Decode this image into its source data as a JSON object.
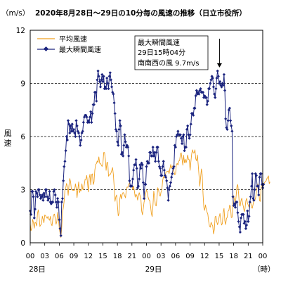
{
  "chart_data": {
    "type": "line",
    "title": "2020年8月28日～29日の10分毎の風速の推移（日立市役所）",
    "unit_label": "（m/s）",
    "ylabel": "風速",
    "x_unit": "（時）",
    "ylim": [
      0,
      12
    ],
    "y_ticks": [
      "0",
      "3",
      "6",
      "9",
      "12"
    ],
    "x_tick_labels": [
      "00",
      "03",
      "06",
      "09",
      "12",
      "15",
      "18",
      "21",
      "00",
      "03",
      "06",
      "09",
      "12",
      "15",
      "18",
      "21",
      "00"
    ],
    "day_labels": [
      {
        "label": "28日",
        "at_hour": 0
      },
      {
        "label": "29日",
        "at_hour": 24
      }
    ],
    "x_range_hours": [
      0,
      48
    ],
    "grid": "dashed horizontal at 3, 6, 9",
    "legend_placement": "top-left",
    "colors": {
      "average": "#f0a020",
      "max": "#1a237e"
    },
    "annotation": {
      "lines": [
        "最大瞬間風速",
        "29日15時04分",
        "南南西の風 9.7m/s"
      ],
      "arrow_at_hour": 39.07,
      "arrow_value": 9.7
    },
    "series": [
      {
        "name": "平均風速",
        "sample_interval_hours": 0.1667,
        "values": [
          1.07,
          0.68,
          0.82,
          1.32,
          1.15,
          0.82,
          1.16,
          1.11,
          0.95,
          1.66,
          1.86,
          1.49,
          0.92,
          1.01,
          1.06,
          1.5,
          1.33,
          1.13,
          1.57,
          1.53,
          1.45,
          1.38,
          1.49,
          1.34,
          1.27,
          1.49,
          1.07,
          0.96,
          1.35,
          1.57,
          1.62,
          1.38,
          1.05,
          1.21,
          1.72,
          1.33,
          0.81,
          0.55,
          0.3,
          0.84,
          1.69,
          1.97,
          2.34,
          2.98,
          3.1,
          3.35,
          3.18,
          2.68,
          3.24,
          3.63,
          3.44,
          3.0,
          2.98,
          2.96,
          2.97,
          2.97,
          3.33,
          3.07,
          2.55,
          3.0,
          3.44,
          2.83,
          2.97,
          2.93,
          3.33,
          3.03,
          2.99,
          3.29,
          3.59,
          3.58,
          3.8,
          3.37,
          2.87,
          3.64,
          3.87,
          3.27,
          3.84,
          3.89,
          3.29,
          3.43,
          4.09,
          4.42,
          4.47,
          4.62,
          4.53,
          4.85,
          4.49,
          4.48,
          4.39,
          4.31,
          4.45,
          5.1,
          5.1,
          4.75,
          4.09,
          4.53,
          4.54,
          3.76,
          3.84,
          3.84,
          3.94,
          4.09,
          4.25,
          3.84,
          3.14,
          2.34,
          2.59,
          2.7,
          2.12,
          1.52,
          1.66,
          2.49,
          2.73,
          2.47,
          2.75,
          2.84,
          2.78,
          2.65,
          2.54,
          2.98,
          3.15,
          3.13,
          3.3,
          3.38,
          3.14,
          3.21,
          3.23,
          3.0,
          3.2,
          2.92,
          2.58,
          2.73,
          2.68,
          2.41,
          2.65,
          2.83,
          2.66,
          2.51,
          1.8,
          1.58,
          1.92,
          2.3,
          2.48,
          2.77,
          2.99,
          2.85,
          2.57,
          2.43,
          2.38,
          2.08,
          1.66,
          1.48,
          2.1,
          2.92,
          2.58,
          2.14,
          2.08,
          2.55,
          3.11,
          2.97,
          2.7,
          2.63,
          2.86,
          2.98,
          3.51,
          3.74,
          3.66,
          3.72,
          3.99,
          4.02,
          4.02,
          4.06,
          3.91,
          4.18,
          4.42,
          4.22,
          4.33,
          4.34,
          4.04,
          3.84,
          3.9,
          4.42,
          4.48,
          4.39,
          4.62,
          4.63,
          5.0,
          5.08,
          4.73,
          4.38,
          4.94,
          4.52,
          4.72,
          4.51,
          4.68,
          4.96,
          4.71,
          4.69,
          4.09,
          4.59,
          5.04,
          5.25,
          5.07,
          5.08,
          5.25,
          4.74,
          4.63,
          4.96,
          4.44,
          3.83,
          3.19,
          3.68,
          4.17,
          3.84,
          2.77,
          2.0,
          1.83,
          2.14,
          1.9,
          1.73,
          1.6,
          1.19,
          0.95,
          0.88,
          1.16,
          1.04,
          0.94,
          0.5,
          0.74,
          1.47,
          1.5,
          1.19,
          1.02,
          1.18,
          1.48,
          1.65,
          1.26,
          1.0,
          1.09,
          1.71,
          1.94,
          1.24,
          1.03,
          1.37,
          1.44,
          1.78,
          1.83,
          2.13,
          2.05,
          1.42,
          1.44,
          2.3,
          2.67,
          2.37,
          2.19,
          2.64,
          3.17,
          3.29,
          2.81,
          2.16,
          2.07,
          2.37,
          2.52,
          2.22,
          2.04,
          1.76,
          1.92,
          2.37,
          2.51,
          2.24,
          2.13,
          2.01,
          2.24,
          2.28,
          2.0,
          1.95,
          2.17,
          2.42,
          2.39,
          2.5,
          2.84,
          3.21,
          3.32,
          3.0,
          2.37,
          2.34,
          3.1,
          3.36,
          3.28,
          3.22,
          3.38,
          3.46,
          3.48,
          3.62,
          3.68,
          3.78,
          3.34,
          3.44
        ]
      },
      {
        "name": "最大瞬間風速",
        "sample_interval_hours": 0.1667,
        "values": [
          1.8,
          1.6,
          2.9,
          2.9,
          2.6,
          1.4,
          1.9,
          2.9,
          2.8,
          2.6,
          3.0,
          3.0,
          2.7,
          2.5,
          2.6,
          2.7,
          2.4,
          2.8,
          2.6,
          3.0,
          3.0,
          2.6,
          2.4,
          2.5,
          2.9,
          2.3,
          2.2,
          2.3,
          2.3,
          2.9,
          3.0,
          2.7,
          2.3,
          2.0,
          2.5,
          2.3,
          1.3,
          0.8,
          0.4,
          2.3,
          2.5,
          3.5,
          4.3,
          4.6,
          5.2,
          6.0,
          5.8,
          6.9,
          6.7,
          6.2,
          6.6,
          6.3,
          6.7,
          6.3,
          6.4,
          6.2,
          6.0,
          6.9,
          6.6,
          6.3,
          6.2,
          6.0,
          5.5,
          5.8,
          6.2,
          6.3,
          6.8,
          7.1,
          7.2,
          7.2,
          7.1,
          6.8,
          6.9,
          6.8,
          7.1,
          7.4,
          6.8,
          7.3,
          7.8,
          7.8,
          8.5,
          8.5,
          8.0,
          9.2,
          9.7,
          9.4,
          9.1,
          8.8,
          9.2,
          9.5,
          9.1,
          9.4,
          8.7,
          8.8,
          8.7,
          9.3,
          9.0,
          8.7,
          9.4,
          9.6,
          9.2,
          8.8,
          8.5,
          8.4,
          7.9,
          7.3,
          6.4,
          6.3,
          5.7,
          5.5,
          6.4,
          6.9,
          6.6,
          5.0,
          5.1,
          4.9,
          5.5,
          6.1,
          5.7,
          5.4,
          5.5,
          5.4,
          4.9,
          3.5,
          3.2,
          3.2,
          3.2,
          3.6,
          4.1,
          4.4,
          4.4,
          4.7,
          4.2,
          3.1,
          3.2,
          3.6,
          4.4,
          4.2,
          4.5,
          4.4,
          3.4,
          2.5,
          3.3,
          3.3,
          4.3,
          4.6,
          4.5,
          4.5,
          5.1,
          5.1,
          4.9,
          4.9,
          5.4,
          4.9,
          5.1,
          4.6,
          5.1,
          5.4,
          5.4,
          4.6,
          4.3,
          4.2,
          3.8,
          3.8,
          4.3,
          4.6,
          4.1,
          3.8,
          3.7,
          3.5,
          3.1,
          2.4,
          3.0,
          3.2,
          3.4,
          3.7,
          3.9,
          4.2,
          4.3,
          5.5,
          5.4,
          6.0,
          6.1,
          6.3,
          6.1,
          6.1,
          6.1,
          5.9,
          5.6,
          6.0,
          6.1,
          5.2,
          5.4,
          5.4,
          6.4,
          6.6,
          6.1,
          5.9,
          6.1,
          6.7,
          7.3,
          7.3,
          7.2,
          7.6,
          7.6,
          8.3,
          8.6,
          8.4,
          8.5,
          8.4,
          8.6,
          8.7,
          8.5,
          8.5,
          8.5,
          8.2,
          8.3,
          8.2,
          8.2,
          7.8,
          8.0,
          8.7,
          8.7,
          9.0,
          9.2,
          9.4,
          9.3,
          8.8,
          8.4,
          8.2,
          8.7,
          9.3,
          9.7,
          9.4,
          9.0,
          9.1,
          8.9,
          8.8,
          9.0,
          8.9,
          9.5,
          8.6,
          7.0,
          6.5,
          6.4,
          6.9,
          7.5,
          7.6,
          6.9,
          6.6,
          6.3,
          2.6,
          2.1,
          2.2,
          2.0,
          2.3,
          2.3,
          1.7,
          1.2,
          0.9,
          0.6,
          1.4,
          1.6,
          1.6,
          1.6,
          1.1,
          1.2,
          0.8,
          1.0,
          1.8,
          1.2,
          1.5,
          2.3,
          2.6,
          3.2,
          3.9,
          2.5,
          2.4,
          3.0,
          3.9,
          3.8,
          3.2,
          3.2,
          2.7,
          3.7,
          3.9,
          3.9,
          3.3,
          3.1,
          3.3
        ]
      }
    ]
  }
}
